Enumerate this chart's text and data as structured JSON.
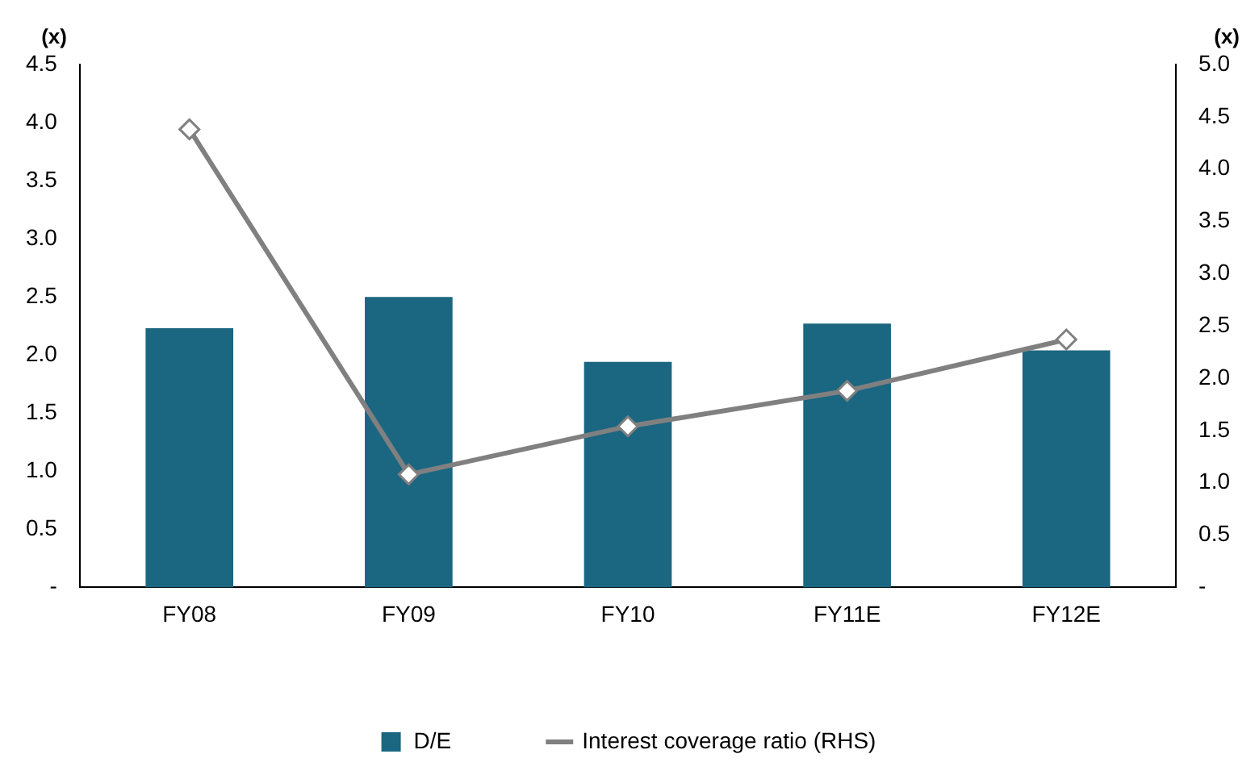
{
  "chart_data": {
    "type": "bar",
    "categories": [
      "FY08",
      "FY09",
      "FY10",
      "FY11E",
      "FY12E"
    ],
    "series": [
      {
        "name": "D/E",
        "color": "#1b6680",
        "values": [
          2.23,
          2.5,
          1.94,
          2.27,
          2.04
        ]
      },
      {
        "name": "Interest coverage ratio (RHS)",
        "type": "line",
        "axis": "y2",
        "color": "#808080",
        "values": [
          4.38,
          1.08,
          1.54,
          1.88,
          2.37
        ]
      }
    ],
    "ylabel": "(x)",
    "y2label": "(x)",
    "ylim": [
      0,
      4.5
    ],
    "yticks": [
      {
        "value": 0,
        "label": "-"
      },
      {
        "value": 0.5,
        "label": "0.5"
      },
      {
        "value": 1,
        "label": "1.0"
      },
      {
        "value": 1.5,
        "label": "1.5"
      },
      {
        "value": 2,
        "label": "2.0"
      },
      {
        "value": 2.5,
        "label": "2.5"
      },
      {
        "value": 3,
        "label": "3.0"
      },
      {
        "value": 3.5,
        "label": "3.5"
      },
      {
        "value": 4,
        "label": "4.0"
      },
      {
        "value": 4.5,
        "label": "4.5"
      }
    ],
    "y2lim": [
      0,
      5
    ],
    "y2ticks": [
      {
        "value": 0,
        "label": "-"
      },
      {
        "value": 0.5,
        "label": "0.5"
      },
      {
        "value": 1,
        "label": "1.0"
      },
      {
        "value": 1.5,
        "label": "1.5"
      },
      {
        "value": 2,
        "label": "2.0"
      },
      {
        "value": 2.5,
        "label": "2.5"
      },
      {
        "value": 3,
        "label": "3.0"
      },
      {
        "value": 3.5,
        "label": "3.5"
      },
      {
        "value": 4,
        "label": "4.0"
      },
      {
        "value": 4.5,
        "label": "4.5"
      },
      {
        "value": 5,
        "label": "5.0"
      }
    ],
    "grid": false,
    "legend": "bottom",
    "marker": "diamond",
    "line_style": "solid"
  }
}
